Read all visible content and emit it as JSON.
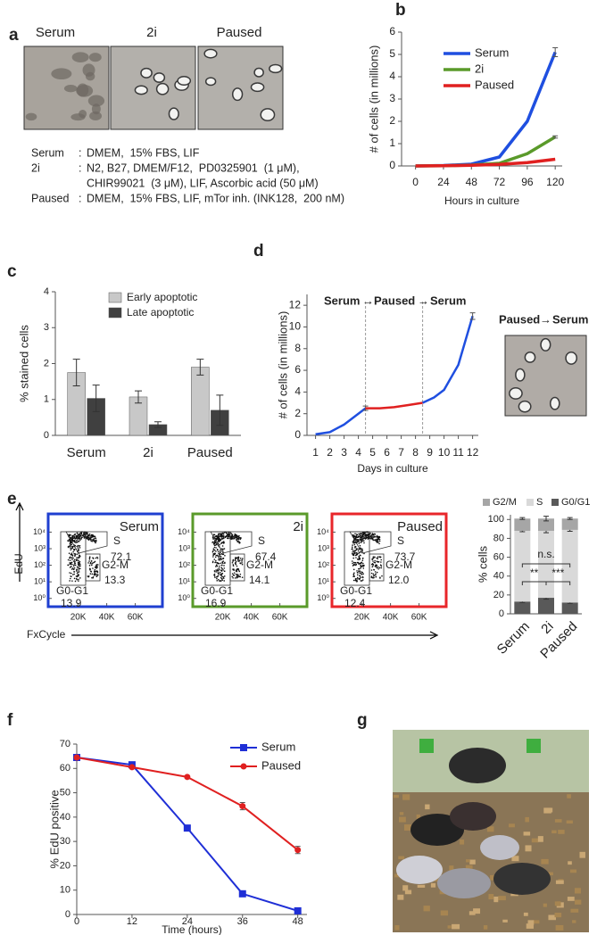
{
  "panel_letters": [
    "a",
    "b",
    "c",
    "d",
    "e",
    "f",
    "g"
  ],
  "panel_a": {
    "images": [
      {
        "label": "Serum",
        "color": "#1f3fd0"
      },
      {
        "label": "2i",
        "color": "#2e9e3a"
      },
      {
        "label": "Paused",
        "color": "#e8262a"
      }
    ],
    "separator": ":",
    "conditions": [
      {
        "name": "Serum",
        "color": "#1f3fd0",
        "lines": [
          "DMEM,  15% FBS, LIF"
        ]
      },
      {
        "name": "2i",
        "color": "#2e9e3a",
        "lines": [
          "N2, B27, DMEM/F12,  PD0325901  (1 μM),",
          "CHIR99021  (3 μM), LIF, Ascorbic acid (50 μM)"
        ]
      },
      {
        "name": "Paused",
        "color": "#e8262a",
        "lines": [
          "DMEM,  15% FBS, LIF, mTor inh. (INK128,  200 nM)"
        ]
      }
    ]
  },
  "panel_d_inset": {
    "label": [
      {
        "text": "Paused",
        "color": "#e8262a"
      },
      {
        "text": "→"
      },
      {
        "text": "Serum",
        "color": "#1f3fd0"
      }
    ]
  },
  "panel_e_axes": {
    "y_label": "EdU",
    "x_label": "FxCycle"
  },
  "chart_data": [
    {
      "type": "line",
      "x_label": "Hours in culture",
      "y_label": "# of cells (in millions)",
      "x": [
        0,
        24,
        48,
        72,
        96,
        120
      ],
      "xlim": [
        -12,
        126
      ],
      "xticks": [
        0,
        24,
        48,
        72,
        96,
        120
      ],
      "ylim": [
        0,
        6
      ],
      "yticks": [
        0,
        1,
        2,
        3,
        4,
        5,
        6
      ],
      "series": [
        {
          "name": "Serum",
          "color": "#1f4fe0",
          "values": [
            0,
            0.02,
            0.08,
            0.4,
            2.0,
            5.1
          ],
          "errors": [
            null,
            null,
            null,
            null,
            null,
            0.2
          ]
        },
        {
          "name": "2i",
          "color": "#5a9a2a",
          "values": [
            0,
            0.01,
            0.04,
            0.12,
            0.55,
            1.3
          ],
          "errors": [
            null,
            null,
            null,
            null,
            null,
            0.05
          ]
        },
        {
          "name": "Paused",
          "color": "#e02020",
          "values": [
            0,
            0.01,
            0.03,
            0.07,
            0.15,
            0.3
          ]
        }
      ]
    },
    {
      "type": "bar",
      "y_label": "% stained cells",
      "categories": [
        "Serum",
        "2i",
        "Paused"
      ],
      "category_colors": [
        "#1f3fd0",
        "#2e9e3a",
        "#e8262a"
      ],
      "ylim": [
        0,
        4
      ],
      "yticks": [
        0,
        1,
        2,
        3,
        4
      ],
      "series": [
        {
          "name": "Early apoptotic",
          "color": "#c8c8c8",
          "values": [
            1.75,
            1.07,
            1.9
          ],
          "errors": [
            0.37,
            0.17,
            0.22
          ]
        },
        {
          "name": "Late apoptotic",
          "color": "#404040",
          "values": [
            1.03,
            0.3,
            0.7
          ],
          "errors": [
            0.37,
            0.08,
            0.42
          ]
        }
      ]
    },
    {
      "type": "line",
      "x_label": "Days in culture",
      "y_label": "# of cells (in millions)",
      "annotations": [
        {
          "text": "Serum",
          "color": "#1f3fd0"
        },
        {
          "text": "→"
        },
        {
          "text": "Paused",
          "color": "#e8262a"
        },
        {
          "text": "→"
        },
        {
          "text": "Serum",
          "color": "#1f3fd0"
        }
      ],
      "xlim": [
        0.4,
        12.4
      ],
      "xticks": [
        1,
        2,
        3,
        4,
        5,
        6,
        7,
        8,
        9,
        10,
        11,
        12
      ],
      "ylim": [
        0,
        13
      ],
      "yticks": [
        0,
        2,
        4,
        6,
        8,
        10,
        12
      ],
      "vlines": [
        4.5,
        8.5
      ],
      "series": [
        {
          "color": "#1f4fe0",
          "x": [
            1,
            2,
            3,
            4.5
          ],
          "values": [
            0.1,
            0.3,
            1.0,
            2.5
          ],
          "errors": [
            null,
            null,
            null,
            0.2
          ]
        },
        {
          "color": "#e02020",
          "x": [
            4.5,
            5.5,
            6.5,
            7.5,
            8.5
          ],
          "values": [
            2.5,
            2.5,
            2.6,
            2.8,
            3.0
          ]
        },
        {
          "color": "#1f4fe0",
          "x": [
            8.5,
            9.3,
            10,
            11,
            12
          ],
          "values": [
            3.0,
            3.5,
            4.2,
            6.5,
            11.0
          ],
          "errors": [
            null,
            null,
            null,
            null,
            0.3
          ]
        }
      ]
    },
    {
      "type": "flow",
      "title": "Serum",
      "border_color": "#1f3fd0",
      "xlim": [
        -1000,
        79000
      ],
      "xticks": [
        {
          "value": 20000,
          "label": "20K"
        },
        {
          "value": 40000,
          "label": "40K"
        },
        {
          "value": 60000,
          "label": "60K"
        }
      ],
      "ylim": [
        -0.5,
        5.1
      ],
      "yticks": [
        {
          "value": 0,
          "label": "10⁰"
        },
        {
          "value": 1,
          "label": "10¹"
        },
        {
          "value": 2,
          "label": "10²"
        },
        {
          "value": 3,
          "label": "10³"
        },
        {
          "value": 4,
          "label": "10⁴"
        }
      ],
      "gates": [
        {
          "name": "S",
          "value": 72.1
        },
        {
          "name": "G0-G1",
          "value": 13.9
        },
        {
          "name": "G2-M",
          "value": 13.3
        }
      ]
    },
    {
      "type": "flow",
      "title": "2i",
      "border_color": "#5a9a2a",
      "xlim": [
        -1000,
        79000
      ],
      "xticks": [
        {
          "value": 20000,
          "label": "20K"
        },
        {
          "value": 40000,
          "label": "40K"
        },
        {
          "value": 60000,
          "label": "60K"
        }
      ],
      "ylim": [
        -0.5,
        5.1
      ],
      "yticks": [
        {
          "value": 0,
          "label": "10⁰"
        },
        {
          "value": 1,
          "label": "10¹"
        },
        {
          "value": 2,
          "label": "10²"
        },
        {
          "value": 3,
          "label": "10³"
        },
        {
          "value": 4,
          "label": "10⁴"
        }
      ],
      "gates": [
        {
          "name": "S",
          "value": 67.4
        },
        {
          "name": "G0-G1",
          "value": 16.9
        },
        {
          "name": "G2-M",
          "value": 14.1
        }
      ]
    },
    {
      "type": "flow",
      "title": "Paused",
      "border_color": "#e8262a",
      "xlim": [
        -1000,
        79000
      ],
      "xticks": [
        {
          "value": 20000,
          "label": "20K"
        },
        {
          "value": 40000,
          "label": "40K"
        },
        {
          "value": 60000,
          "label": "60K"
        }
      ],
      "ylim": [
        -0.5,
        5.1
      ],
      "yticks": [
        {
          "value": 0,
          "label": "10⁰"
        },
        {
          "value": 1,
          "label": "10¹"
        },
        {
          "value": 2,
          "label": "10²"
        },
        {
          "value": 3,
          "label": "10³"
        },
        {
          "value": 4,
          "label": "10⁴"
        }
      ],
      "gates": [
        {
          "name": "S",
          "value": 73.7
        },
        {
          "name": "G0-G1",
          "value": 12.4
        },
        {
          "name": "G2-M",
          "value": 12,
          "value_label": "12.0"
        }
      ]
    },
    {
      "type": "stacked_bar",
      "y_label": "% cells",
      "categories": [
        "Serum",
        "2i",
        "Paused"
      ],
      "category_colors": [
        "#1f3fd0",
        "#2e9e3a",
        "#e8262a"
      ],
      "ylim": [
        0,
        105
      ],
      "yticks": [
        0,
        20,
        40,
        60,
        80,
        100
      ],
      "significance": [
        "n.s.",
        "**",
        "***"
      ],
      "series": [
        {
          "name": "G0/G1",
          "color": "#595959",
          "values": [
            13,
            17,
            12
          ],
          "errors": [
            1,
            1.5,
            1
          ]
        },
        {
          "name": "S",
          "color": "#d9d9d9",
          "values": [
            75,
            71,
            77
          ],
          "errors": [
            1,
            2,
            1.5
          ]
        },
        {
          "name": "G2/M",
          "color": "#a6a6a6",
          "values": [
            13,
            13,
            12
          ],
          "errors": [
            1,
            2.5,
            1
          ]
        }
      ]
    },
    {
      "type": "line",
      "x_label": "Time (hours)",
      "y_label": "% EdU positive",
      "x": [
        0,
        12,
        24,
        36,
        48
      ],
      "xlim": [
        0,
        50
      ],
      "xticks": [
        0,
        12,
        24,
        36,
        48
      ],
      "ylim": [
        0,
        70
      ],
      "yticks": [
        0,
        10,
        20,
        30,
        40,
        50,
        60,
        70
      ],
      "series": [
        {
          "name": "Serum",
          "color": "#1f2fd6",
          "marker": "square",
          "values": [
            64.5,
            61.5,
            35.5,
            8.5,
            1.5
          ],
          "errors": [
            0.5,
            1,
            0.5,
            0.5,
            0.3
          ]
        },
        {
          "name": "Paused",
          "color": "#e02020",
          "marker": "circle",
          "values": [
            64.5,
            60.5,
            56.5,
            44.5,
            26.5
          ],
          "errors": [
            0.5,
            0.5,
            0.5,
            1.5,
            1.5
          ]
        }
      ]
    }
  ]
}
